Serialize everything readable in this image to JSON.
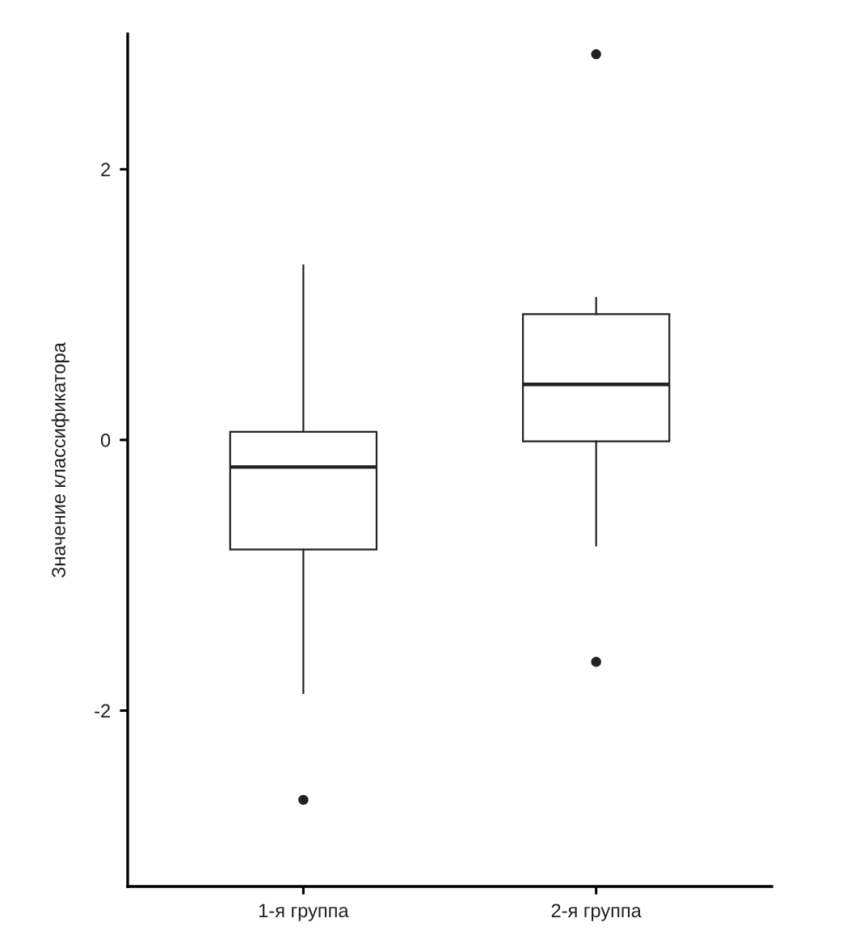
{
  "chart_data": {
    "type": "box",
    "ylabel": "Значение классификатора",
    "categories": [
      "1-я группа",
      "2-я группа"
    ],
    "boxes": [
      {
        "low": -1.87,
        "q1": -0.81,
        "median": -0.2,
        "q3": 0.06,
        "high": 1.29,
        "outliers": [
          -2.66
        ]
      },
      {
        "low": -0.78,
        "q1": -0.01,
        "median": 0.41,
        "q3": 0.93,
        "high": 1.05,
        "outliers": [
          2.85,
          -1.64
        ]
      }
    ],
    "color": "#222222",
    "ylim": [
      -3.3,
      3.0
    ],
    "yticks": [
      -2,
      0,
      2
    ]
  }
}
